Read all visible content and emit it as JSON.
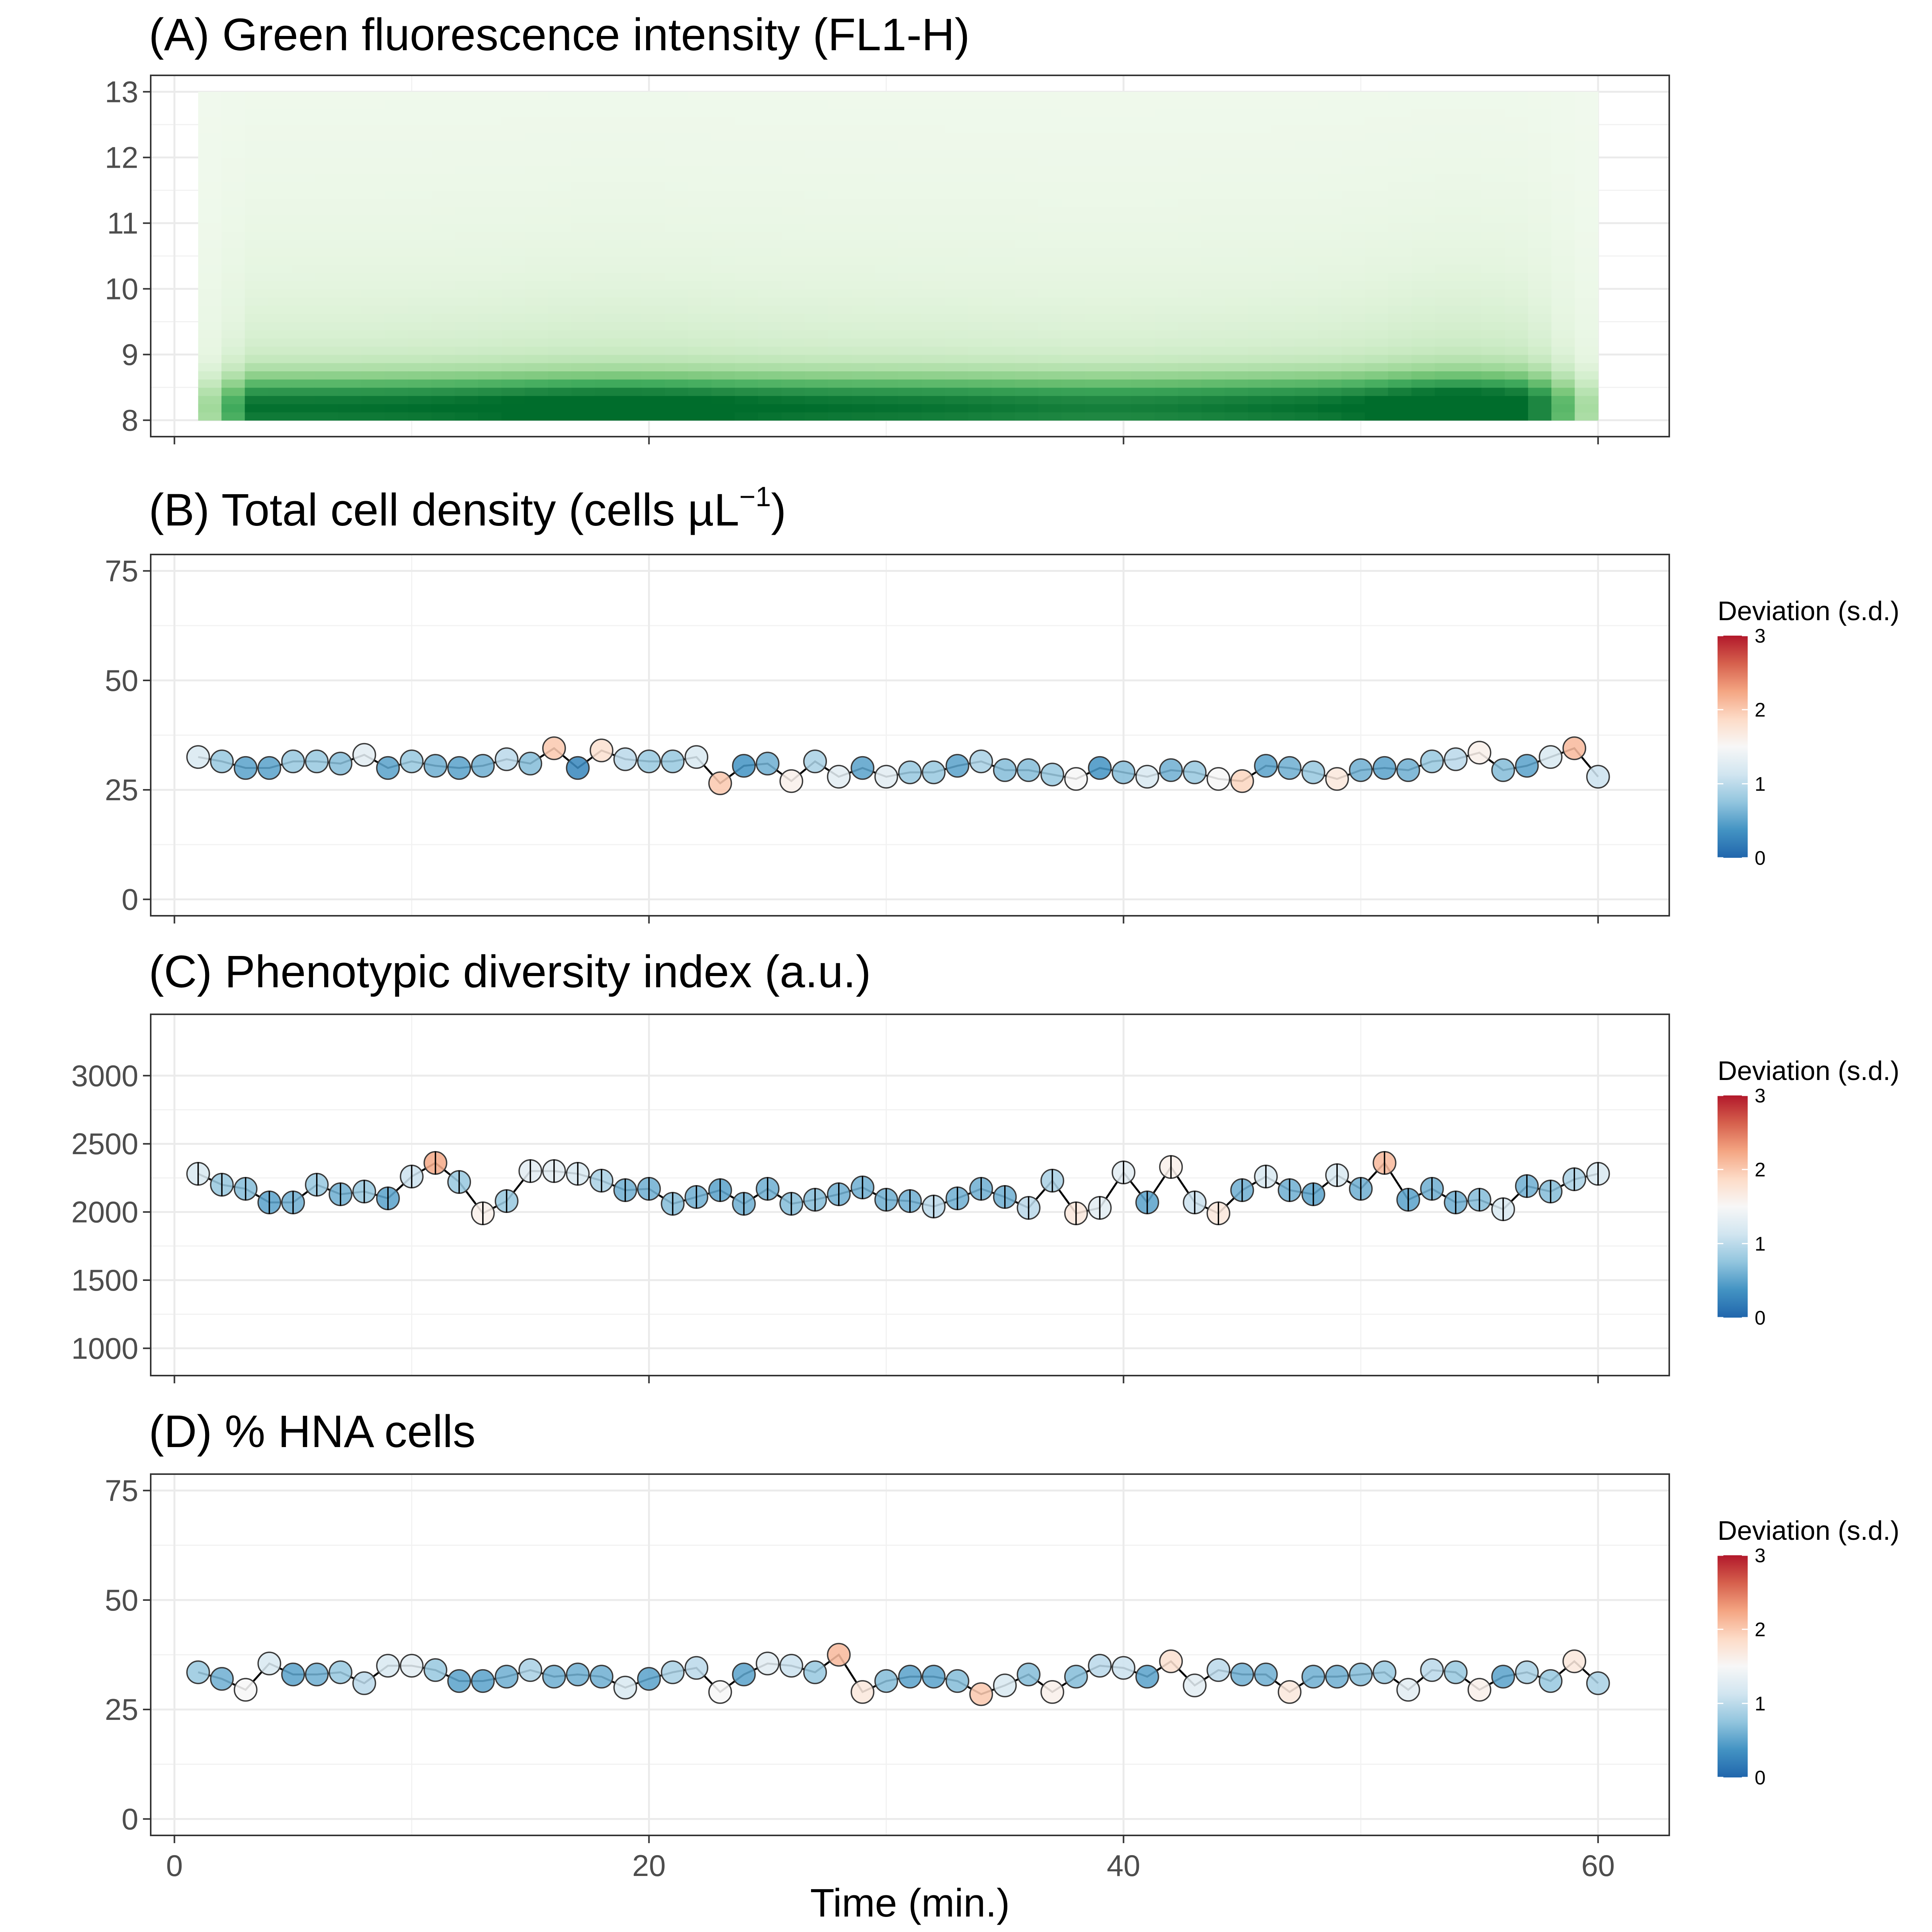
{
  "x_axis": {
    "label": "Time (min.)",
    "range": [
      -1,
      63
    ],
    "ticks": [
      0,
      20,
      40,
      60
    ]
  },
  "legend": {
    "title": "Deviation (s.d.)",
    "ticks": [
      0,
      1,
      2,
      3
    ],
    "range": [
      0,
      3
    ],
    "colors": [
      "#2166ac",
      "#4393c3",
      "#92c5de",
      "#d1e5f0",
      "#f7f7f7",
      "#fddbc7",
      "#f4a582",
      "#d6604d",
      "#b2182b"
    ]
  },
  "panels": [
    {
      "title": "(A) Green fluorescence intensity (FL1-H)",
      "ylim": [
        7.75,
        13.25
      ],
      "yticks": [
        8,
        9,
        10,
        11,
        12,
        13
      ]
    },
    {
      "title": "(B) Total cell density (cells µL",
      "title_sup": "−1",
      "title_end": ")",
      "ylim": [
        -3.75,
        78.75
      ],
      "yticks": [
        0,
        25,
        50,
        75
      ]
    },
    {
      "title": "(C) Phenotypic diversity index (a.u.)",
      "ylim": [
        800,
        3450
      ],
      "yticks": [
        1000,
        1500,
        2000,
        2500,
        3000
      ]
    },
    {
      "title": "(D) % HNA cells",
      "ylim": [
        -3.75,
        78.75
      ],
      "yticks": [
        0,
        25,
        50,
        75
      ]
    }
  ],
  "chart_data": [
    {
      "type": "heatmap",
      "title": "(A) Green fluorescence intensity (FL1-H)",
      "xlabel": "Time (min.)",
      "ylabel": "",
      "x": [
        1,
        60
      ],
      "y": [
        8,
        13
      ],
      "colorscale": [
        "#f7fcf5",
        "#e5f5e0",
        "#c7e9c0",
        "#a1d99b",
        "#74c476",
        "#41ab5d",
        "#238b45",
        "#006d2c"
      ],
      "grid": true
    },
    {
      "type": "scatter",
      "title": "(B) Total cell density (cells µL−1)",
      "xlabel": "Time (min.)",
      "ylabel": "",
      "ylim": [
        0,
        75
      ],
      "color_variable": "Deviation (s.d.)",
      "x": [
        1,
        2,
        3,
        4,
        5,
        6,
        7,
        8,
        9,
        10,
        11,
        12,
        13,
        14,
        15,
        16,
        17,
        18,
        19,
        20,
        21,
        22,
        23,
        24,
        25,
        26,
        27,
        28,
        29,
        30,
        31,
        32,
        33,
        34,
        35,
        36,
        37,
        38,
        39,
        40,
        41,
        42,
        43,
        44,
        45,
        46,
        47,
        48,
        49,
        50,
        51,
        52,
        53,
        54,
        55,
        56,
        57,
        58,
        59,
        60
      ],
      "y": [
        32.5,
        31.5,
        30,
        30,
        31.5,
        31.5,
        31,
        33,
        30,
        31.5,
        30.5,
        30,
        30.5,
        32,
        31,
        34.5,
        30,
        34,
        32,
        31.5,
        31.5,
        32.5,
        26.5,
        30.5,
        31,
        27,
        31.5,
        28,
        30,
        28,
        29,
        29,
        30.5,
        31.5,
        29.5,
        29.5,
        28.5,
        27.5,
        30,
        29,
        28,
        29.5,
        29,
        27.5,
        27,
        30.5,
        30,
        29,
        27.5,
        29.5,
        30,
        29.5,
        31.5,
        32,
        33.5,
        29.5,
        30.5,
        32.5,
        34.5,
        28
      ],
      "deviation": [
        1.2,
        0.8,
        0.5,
        0.5,
        0.8,
        0.8,
        0.7,
        1.3,
        0.5,
        0.8,
        0.6,
        0.5,
        0.6,
        1.0,
        0.7,
        2.0,
        0.3,
        1.8,
        1.0,
        0.8,
        0.8,
        1.2,
        2.0,
        0.4,
        0.6,
        1.6,
        0.9,
        1.3,
        0.5,
        1.3,
        0.8,
        0.8,
        0.5,
        0.9,
        0.7,
        0.7,
        0.8,
        1.5,
        0.4,
        0.7,
        1.2,
        0.6,
        0.8,
        1.5,
        1.9,
        0.5,
        0.6,
        0.8,
        1.7,
        0.6,
        0.5,
        0.6,
        0.8,
        1.0,
        1.6,
        0.7,
        0.5,
        1.2,
        2.1,
        1.1
      ],
      "grid": true
    },
    {
      "type": "scatter",
      "title": "(C) Phenotypic diversity index (a.u.)",
      "xlabel": "Time (min.)",
      "ylabel": "",
      "ylim": [
        1000,
        3000
      ],
      "color_variable": "Deviation (s.d.)",
      "x": [
        1,
        2,
        3,
        4,
        5,
        6,
        7,
        8,
        9,
        10,
        11,
        12,
        13,
        14,
        15,
        16,
        17,
        18,
        19,
        20,
        21,
        22,
        23,
        24,
        25,
        26,
        27,
        28,
        29,
        30,
        31,
        32,
        33,
        34,
        35,
        36,
        37,
        38,
        39,
        40,
        41,
        42,
        43,
        44,
        45,
        46,
        47,
        48,
        49,
        50,
        51,
        52,
        53,
        54,
        55,
        56,
        57,
        58,
        59,
        60
      ],
      "y": [
        2280,
        2200,
        2170,
        2070,
        2070,
        2200,
        2130,
        2150,
        2100,
        2260,
        2360,
        2220,
        1990,
        2080,
        2300,
        2300,
        2280,
        2230,
        2160,
        2170,
        2060,
        2110,
        2160,
        2060,
        2170,
        2060,
        2090,
        2130,
        2180,
        2090,
        2080,
        2040,
        2100,
        2170,
        2110,
        2030,
        2230,
        1990,
        2030,
        2290,
        2070,
        2330,
        2070,
        1990,
        2160,
        2260,
        2160,
        2130,
        2270,
        2170,
        2360,
        2090,
        2170,
        2070,
        2090,
        2020,
        2190,
        2150,
        2240,
        2280
      ],
      "deviation": [
        1.2,
        0.8,
        0.7,
        0.5,
        0.6,
        0.8,
        0.6,
        0.8,
        0.5,
        1.1,
        2.2,
        0.8,
        1.6,
        0.8,
        1.3,
        1.3,
        1.2,
        0.9,
        0.6,
        0.6,
        0.7,
        0.6,
        0.5,
        0.6,
        0.6,
        0.7,
        0.7,
        0.6,
        0.6,
        0.6,
        0.6,
        1.0,
        0.6,
        0.6,
        0.6,
        1.0,
        0.9,
        1.7,
        1.3,
        1.3,
        0.5,
        1.6,
        1.1,
        1.7,
        0.6,
        1.2,
        0.6,
        0.5,
        1.2,
        0.6,
        2.1,
        0.5,
        0.6,
        0.6,
        0.7,
        1.2,
        0.6,
        0.7,
        0.9,
        1.2
      ],
      "grid": true
    },
    {
      "type": "scatter",
      "title": "(D) % HNA cells",
      "xlabel": "Time (min.)",
      "ylabel": "",
      "ylim": [
        0,
        75
      ],
      "color_variable": "Deviation (s.d.)",
      "x": [
        1,
        2,
        3,
        4,
        5,
        6,
        7,
        8,
        9,
        10,
        11,
        12,
        13,
        14,
        15,
        16,
        17,
        18,
        19,
        20,
        21,
        22,
        23,
        24,
        25,
        26,
        27,
        28,
        29,
        30,
        31,
        32,
        33,
        34,
        35,
        36,
        37,
        38,
        39,
        40,
        41,
        42,
        43,
        44,
        45,
        46,
        47,
        48,
        49,
        50,
        51,
        52,
        53,
        54,
        55,
        56,
        57,
        58,
        59,
        60
      ],
      "y": [
        33.5,
        32,
        29.5,
        35.5,
        33,
        33,
        33.5,
        31,
        35,
        35,
        34,
        31.5,
        31.5,
        32.5,
        34,
        32.5,
        33,
        32.5,
        30,
        32,
        33.5,
        34.5,
        29,
        33,
        35.5,
        35,
        33.5,
        37.5,
        29,
        31.5,
        32.5,
        32.5,
        31.5,
        28.5,
        30.5,
        33,
        29,
        32.5,
        35,
        34.5,
        32.5,
        36,
        30.5,
        34,
        33,
        33,
        29,
        32.5,
        32.5,
        33,
        33.5,
        29.5,
        34,
        33.5,
        29.5,
        32.5,
        33.5,
        31.5,
        36,
        31
      ],
      "deviation": [
        0.8,
        0.6,
        1.5,
        1.2,
        0.5,
        0.6,
        0.8,
        1.0,
        1.2,
        1.3,
        0.8,
        0.5,
        0.5,
        0.6,
        0.9,
        0.6,
        0.6,
        0.6,
        1.2,
        0.5,
        0.9,
        1.0,
        1.5,
        0.5,
        1.3,
        1.1,
        0.8,
        2.1,
        1.7,
        0.7,
        0.5,
        0.5,
        0.7,
        2.0,
        1.2,
        0.7,
        1.6,
        0.7,
        1.0,
        1.1,
        0.5,
        1.8,
        1.3,
        1.0,
        0.6,
        0.6,
        1.7,
        0.6,
        0.6,
        0.7,
        0.8,
        1.3,
        1.0,
        0.8,
        1.6,
        0.5,
        0.9,
        0.8,
        1.7,
        0.9
      ],
      "grid": true
    }
  ]
}
